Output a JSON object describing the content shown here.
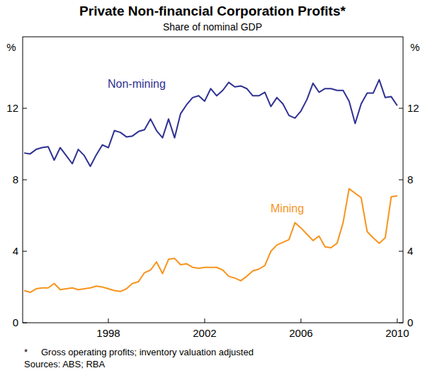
{
  "chart_data": {
    "type": "line",
    "title": "Private Non-financial Corporation Profits*",
    "subtitle": "Share of nominal GDP",
    "y_label": "%",
    "footnote_marker": "*",
    "footnote": "Gross operating profits; inventory valuation adjusted",
    "source": "Sources: ABS; RBA",
    "x": [
      1995,
      1995.25,
      1995.5,
      1995.75,
      1996,
      1996.25,
      1996.5,
      1996.75,
      1997,
      1997.25,
      1997.5,
      1997.75,
      1998,
      1998.25,
      1998.5,
      1998.75,
      1999,
      1999.25,
      1999.5,
      1999.75,
      2000,
      2000.25,
      2000.5,
      2000.75,
      2001,
      2001.25,
      2001.5,
      2001.75,
      2002,
      2002.25,
      2002.5,
      2002.75,
      2003,
      2003.25,
      2003.5,
      2003.75,
      2004,
      2004.25,
      2004.5,
      2004.75,
      2005,
      2005.25,
      2005.5,
      2005.75,
      2006,
      2006.25,
      2006.5,
      2006.75,
      2007,
      2007.25,
      2007.5,
      2007.75,
      2008,
      2008.25,
      2008.5,
      2008.75,
      2009,
      2009.25,
      2009.5,
      2009.75,
      2010,
      2010.25,
      2010.5
    ],
    "series": [
      {
        "name": "Non-mining",
        "color": "#2e3192",
        "values": [
          9.5,
          9.45,
          9.7,
          9.8,
          9.85,
          9.1,
          9.8,
          9.35,
          8.9,
          9.7,
          9.35,
          8.75,
          9.4,
          9.95,
          9.8,
          10.75,
          10.65,
          10.4,
          10.45,
          10.7,
          10.8,
          11.4,
          10.75,
          10.35,
          11.4,
          10.35,
          11.7,
          12.2,
          12.6,
          12.7,
          12.4,
          13.1,
          12.7,
          13.0,
          13.45,
          13.2,
          13.25,
          13.1,
          12.7,
          12.7,
          12.9,
          12.1,
          12.6,
          12.25,
          11.6,
          11.45,
          11.85,
          12.5,
          13.4,
          12.9,
          13.1,
          13.1,
          13.0,
          13.0,
          12.4,
          11.15,
          12.25,
          12.85,
          12.85,
          13.6,
          12.6,
          12.65,
          12.15
        ]
      },
      {
        "name": "Mining",
        "color": "#f7941d",
        "values": [
          1.8,
          1.7,
          1.9,
          1.95,
          1.95,
          2.2,
          1.85,
          1.9,
          1.95,
          1.85,
          1.9,
          1.95,
          2.05,
          2.0,
          1.9,
          1.8,
          1.75,
          1.9,
          2.2,
          2.3,
          2.8,
          2.95,
          3.4,
          2.75,
          3.55,
          3.6,
          3.25,
          3.3,
          3.1,
          3.05,
          3.1,
          3.1,
          3.1,
          2.95,
          2.6,
          2.5,
          2.35,
          2.6,
          2.9,
          3.0,
          3.2,
          4.0,
          4.35,
          4.5,
          4.65,
          5.6,
          5.3,
          4.95,
          4.6,
          4.85,
          4.25,
          4.2,
          4.45,
          5.6,
          7.5,
          7.25,
          7.0,
          5.1,
          4.75,
          4.45,
          4.75,
          7.05,
          7.1
        ]
      }
    ],
    "xlim": [
      1994.94,
      2010.74
    ],
    "xticks": [
      {
        "value": 1998.5,
        "label": "1998"
      },
      {
        "value": 2002.5,
        "label": "2002"
      },
      {
        "value": 2006.5,
        "label": "2006"
      },
      {
        "value": 2010.5,
        "label": "2010"
      }
    ],
    "ylim": [
      0,
      16
    ],
    "yticks": [
      0,
      4,
      8,
      12
    ],
    "grid": false
  }
}
